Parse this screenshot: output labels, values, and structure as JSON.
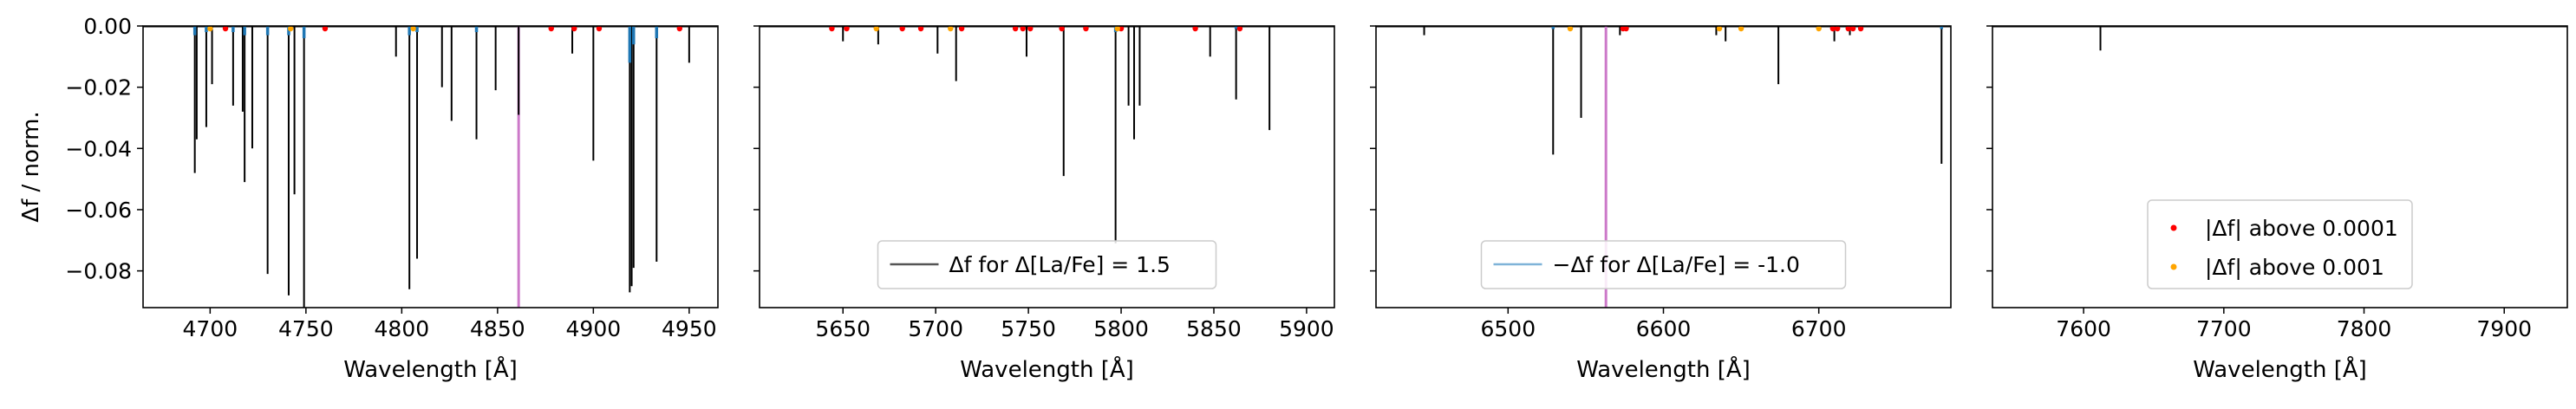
{
  "chart_data": [
    {
      "type": "line",
      "panel": 1,
      "xlabel": "Wavelength [Å]",
      "ylabel": "Δf / norm.",
      "xlim": [
        4665,
        4965
      ],
      "ylim": [
        -0.092,
        0.0
      ],
      "xticks": [
        4700,
        4750,
        4800,
        4850,
        4900,
        4950
      ],
      "yticks": [
        0.0,
        -0.02,
        -0.04,
        -0.06,
        -0.08
      ],
      "ytick_labels": [
        "0.00",
        "−0.02",
        "−0.04",
        "−0.06",
        "−0.08"
      ],
      "highlight_line": 4861,
      "series": [
        {
          "kind": "black",
          "x": [
            4692,
            4693,
            4698,
            4701,
            4712,
            4717,
            4718,
            4722,
            4730,
            4741,
            4744,
            4749,
            4797,
            4804,
            4808,
            4821,
            4826,
            4839,
            4849,
            4861,
            4889,
            4900,
            4919,
            4920,
            4921,
            4933,
            4950
          ],
          "values": [
            -0.048,
            -0.037,
            -0.033,
            -0.019,
            -0.026,
            -0.028,
            -0.051,
            -0.04,
            -0.081,
            -0.088,
            -0.055,
            -0.092,
            -0.01,
            -0.086,
            -0.076,
            -0.02,
            -0.031,
            -0.037,
            -0.021,
            -0.029,
            -0.009,
            -0.044,
            -0.087,
            -0.085,
            -0.079,
            -0.077,
            -0.012
          ]
        },
        {
          "kind": "blue",
          "x": [
            4692,
            4698,
            4712,
            4718,
            4730,
            4741,
            4749,
            4804,
            4808,
            4839,
            4919,
            4921,
            4933
          ],
          "values": [
            -0.003,
            -0.002,
            -0.002,
            -0.003,
            -0.003,
            -0.003,
            -0.004,
            -0.003,
            -0.002,
            -0.002,
            -0.012,
            -0.006,
            -0.004
          ]
        },
        {
          "kind": "red",
          "x": [
            4708,
            4760,
            4878,
            4890,
            4903,
            4945
          ],
          "values": [
            0,
            0,
            0,
            0,
            0,
            0
          ]
        },
        {
          "kind": "orange",
          "x": [
            4700,
            4742,
            4806
          ],
          "values": [
            0,
            0,
            0
          ]
        }
      ]
    },
    {
      "type": "line",
      "panel": 2,
      "xlabel": "Wavelength [Å]",
      "xlim": [
        5605,
        5915
      ],
      "ylim": [
        -0.092,
        0.0
      ],
      "xticks": [
        5650,
        5700,
        5750,
        5800,
        5850,
        5900
      ],
      "legend": {
        "label": "Δf for Δ[La/Fe] = 1.5",
        "placement": "lower center"
      },
      "series": [
        {
          "kind": "black",
          "x": [
            5650,
            5669,
            5701,
            5711,
            5749,
            5769,
            5797,
            5804,
            5807,
            5810,
            5848,
            5862,
            5880
          ],
          "values": [
            -0.005,
            -0.006,
            -0.009,
            -0.018,
            -0.01,
            -0.049,
            -0.071,
            -0.026,
            -0.037,
            -0.026,
            -0.01,
            -0.024,
            -0.034
          ]
        },
        {
          "kind": "blue",
          "x": [
            5797,
            5862
          ],
          "values": [
            -0.002,
            -0.001
          ]
        },
        {
          "kind": "red",
          "x": [
            5644,
            5652,
            5682,
            5692,
            5714,
            5743,
            5747,
            5751,
            5768,
            5781,
            5800,
            5840,
            5864
          ],
          "values": [
            0,
            0,
            0,
            0,
            0,
            0,
            0,
            0,
            0,
            0,
            0,
            0,
            0
          ]
        },
        {
          "kind": "orange",
          "x": [
            5668,
            5708,
            5798
          ],
          "values": [
            0,
            0,
            0
          ]
        }
      ]
    },
    {
      "type": "line",
      "panel": 3,
      "xlabel": "Wavelength [Å]",
      "xlim": [
        6415,
        6785
      ],
      "ylim": [
        -0.092,
        0.0
      ],
      "xticks": [
        6500,
        6600,
        6700
      ],
      "highlight_line": 6563,
      "legend": {
        "label": "−Δf for Δ[La/Fe] = -1.0",
        "placement": "lower center"
      },
      "series": [
        {
          "kind": "black",
          "x": [
            6446,
            6529,
            6547,
            6572,
            6634,
            6640,
            6674,
            6710,
            6720,
            6779
          ],
          "values": [
            -0.003,
            -0.042,
            -0.03,
            -0.003,
            -0.003,
            -0.005,
            -0.019,
            -0.005,
            -0.003,
            -0.045
          ]
        },
        {
          "kind": "blue",
          "x": [
            6529,
            6779
          ],
          "values": [
            -0.001,
            -0.001
          ]
        },
        {
          "kind": "red",
          "x": [
            6574,
            6576,
            6709,
            6712,
            6719,
            6722,
            6727
          ],
          "values": [
            0,
            0,
            0,
            0,
            0,
            0,
            0
          ]
        },
        {
          "kind": "orange",
          "x": [
            6540,
            6636,
            6650,
            6700
          ],
          "values": [
            0,
            0,
            0,
            0
          ]
        }
      ]
    },
    {
      "type": "line",
      "panel": 4,
      "xlabel": "Wavelength [Å]",
      "xlim": [
        7535,
        7945
      ],
      "ylim": [
        -0.092,
        0.0
      ],
      "xticks": [
        7600,
        7700,
        7800,
        7900
      ],
      "legend": {
        "entries": [
          "|Δf| above 0.0001",
          "|Δf| above 0.001"
        ],
        "placement": "lower center"
      },
      "series": [
        {
          "kind": "black",
          "x": [
            7612
          ],
          "values": [
            -0.008
          ]
        }
      ]
    }
  ],
  "colors": {
    "black": "#000000",
    "blue": "#1f77b4",
    "red": "#ff0000",
    "orange": "#ffa500",
    "highlight": "#cc79c9",
    "legend_black": "#555555",
    "legend_blue": "#7fb3d8"
  }
}
